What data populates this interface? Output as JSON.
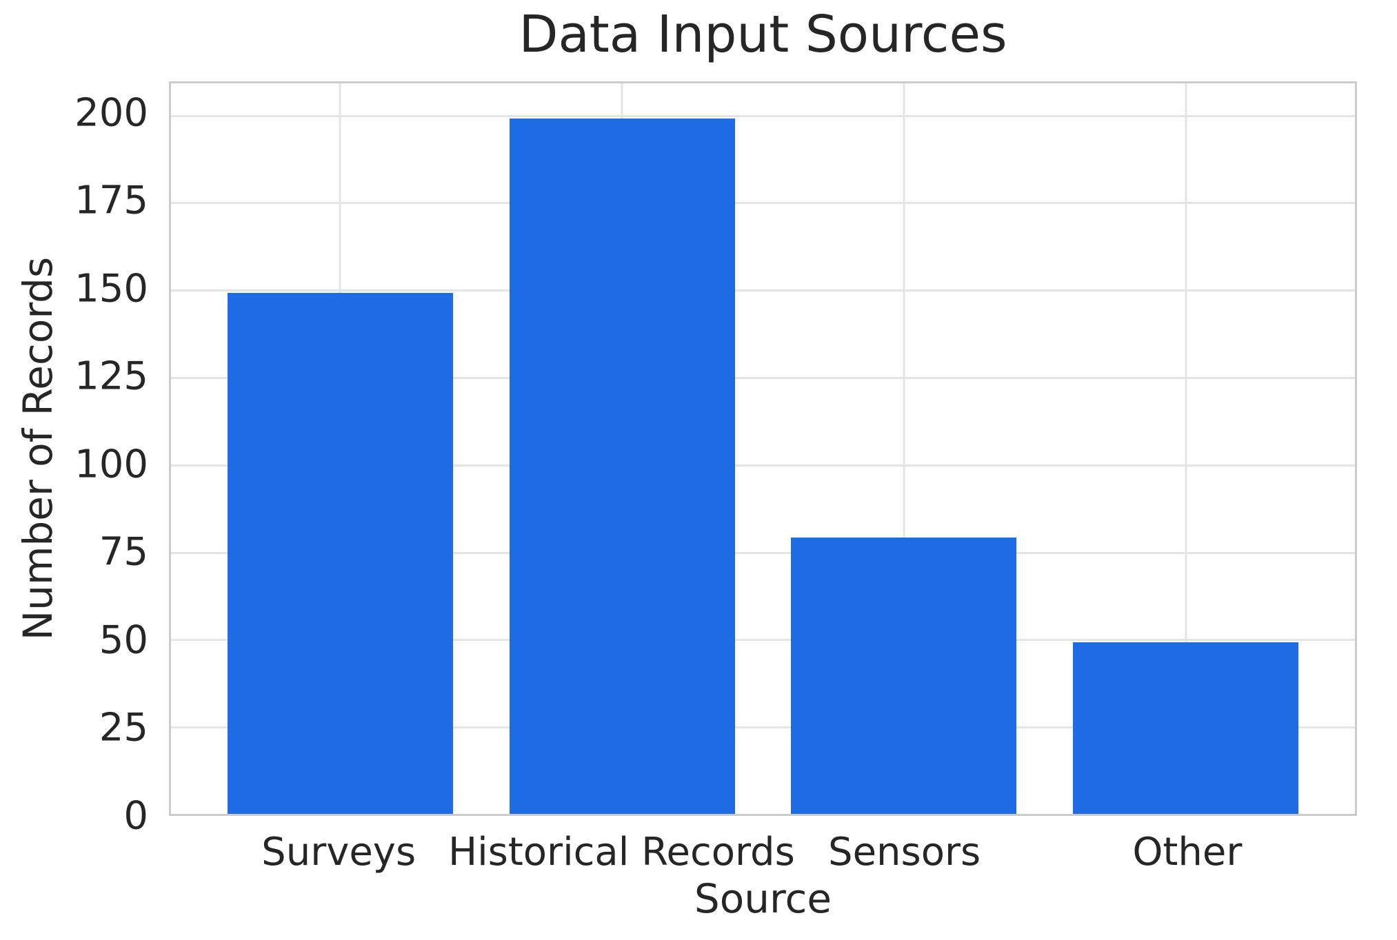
{
  "chart_data": {
    "type": "bar",
    "title": "Data Input Sources",
    "xlabel": "Source",
    "ylabel": "Number of Records",
    "categories": [
      "Surveys",
      "Historical Records",
      "Sensors",
      "Other"
    ],
    "values": [
      149,
      199,
      79,
      49
    ],
    "yticks": [
      0,
      25,
      50,
      75,
      100,
      125,
      150,
      175,
      200
    ],
    "ylim": [
      0,
      209
    ],
    "x_edge_pad": 0.6,
    "bar_width_frac": 0.8,
    "grid": "both",
    "legend": "none",
    "colors": {
      "bar": "#1e6be4",
      "text": "#262626",
      "grid": "#e4e4e4",
      "spine": "#cccccc",
      "background": "#ffffff"
    }
  }
}
